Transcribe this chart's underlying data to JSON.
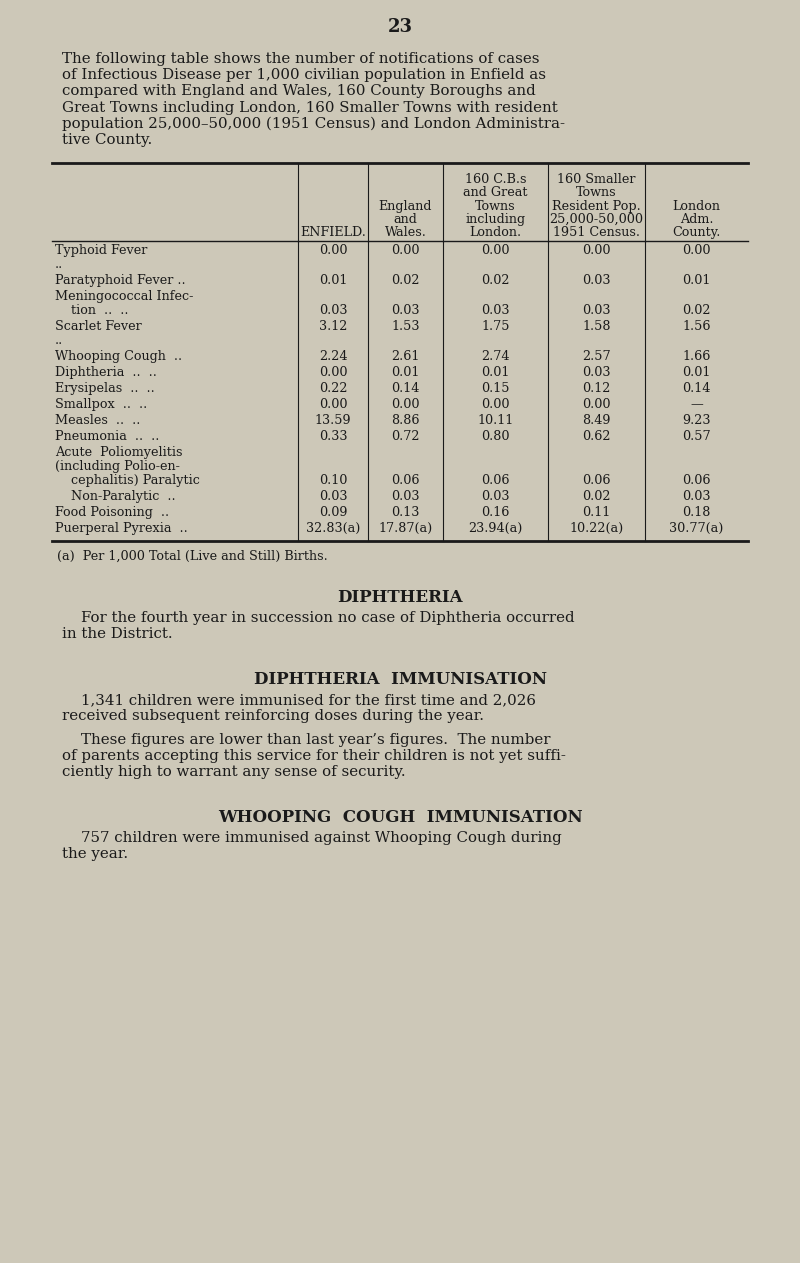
{
  "bg_color": "#cdc8b8",
  "text_color": "#1a1a1a",
  "page_number": "23",
  "intro_lines": [
    "The following table shows the number of notifications of cases",
    "of Infectious Disease per 1,000 civilian population in Enfield as",
    "compared with England and Wales, 160 County Boroughs and",
    "Great Towns including London, 160 Smaller Towns with resident",
    "population 25,000–50,000 (1951 Census) and London Administra-",
    "tive County."
  ],
  "col_headers": [
    [
      "ENFIELD."
    ],
    [
      "England",
      "and",
      "Wales."
    ],
    [
      "160 C.B.s",
      "and Great",
      "Towns",
      "including",
      "London."
    ],
    [
      "160 Smaller",
      "Towns",
      "Resident Pop.",
      "25,000-50,000",
      "1951 Census."
    ],
    [
      "London",
      "Adm.",
      "County."
    ]
  ],
  "row_labels": [
    [
      "Typhoid Fever",
      ".."
    ],
    [
      "Paratyphoid Fever ..",
      ""
    ],
    [
      "Meningococcal Infec-",
      "    tion  ..  .."
    ],
    [
      "Scarlet Fever",
      ".."
    ],
    [
      "Whooping Cough  ..",
      ""
    ],
    [
      "Diphtheria  ..  ..",
      ""
    ],
    [
      "Erysipelas  ..  ..",
      ""
    ],
    [
      "Smallpox  ..  ..",
      ""
    ],
    [
      "Measles  ..  ..",
      ""
    ],
    [
      "Pneumonia  ..  ..",
      ""
    ],
    [
      "Acute  Poliomyelitis",
      "(including Polio-en-",
      "    cephalitis) Paralytic"
    ],
    [
      "    Non-Paralytic  ..",
      ""
    ],
    [
      "Food Poisoning  ..",
      ""
    ],
    [
      "Puerperal Pyrexia  ..",
      ""
    ]
  ],
  "data": [
    [
      "0.00",
      "0.00",
      "0.00",
      "0.00",
      "0.00"
    ],
    [
      "0.01",
      "0.02",
      "0.02",
      "0.03",
      "0.01"
    ],
    [
      "0.03",
      "0.03",
      "0.03",
      "0.03",
      "0.02"
    ],
    [
      "3.12",
      "1.53",
      "1.75",
      "1.58",
      "1.56"
    ],
    [
      "2.24",
      "2.61",
      "2.74",
      "2.57",
      "1.66"
    ],
    [
      "0.00",
      "0.01",
      "0.01",
      "0.03",
      "0.01"
    ],
    [
      "0.22",
      "0.14",
      "0.15",
      "0.12",
      "0.14"
    ],
    [
      "0.00",
      "0.00",
      "0.00",
      "0.00",
      "—"
    ],
    [
      "13.59",
      "8.86",
      "10.11",
      "8.49",
      "9.23"
    ],
    [
      "0.33",
      "0.72",
      "0.80",
      "0.62",
      "0.57"
    ],
    [
      "0.10",
      "0.06",
      "0.06",
      "0.06",
      "0.06"
    ],
    [
      "0.03",
      "0.03",
      "0.03",
      "0.02",
      "0.03"
    ],
    [
      "0.09",
      "0.13",
      "0.16",
      "0.11",
      "0.18"
    ],
    [
      "32.83(a)",
      "17.87(a)",
      "23.94(a)",
      "10.22(a)",
      "30.77(a)"
    ]
  ],
  "footnote": "(a)  Per 1,000 Total (Live and Still) Births.",
  "section1_title": "DIPHTHERIA",
  "section1_lines": [
    "    For the fourth year in succession no case of Diphtheria occurred",
    "in the District."
  ],
  "section2_title": "DIPHTHERIA  IMMUNISATION",
  "section2_lines": [
    "    1,341 children were immunised for the first time and 2,026",
    "received subsequent reinforcing doses during the year.",
    "",
    "    These figures are lower than last year’s figures.  The number",
    "of parents accepting this service for their children is not yet suffi-",
    "ciently high to warrant any sense of security."
  ],
  "section3_title": "WHOOPING  COUGH  IMMUNISATION",
  "section3_lines": [
    "    757 children were immunised against Whooping Cough during",
    "the year."
  ]
}
